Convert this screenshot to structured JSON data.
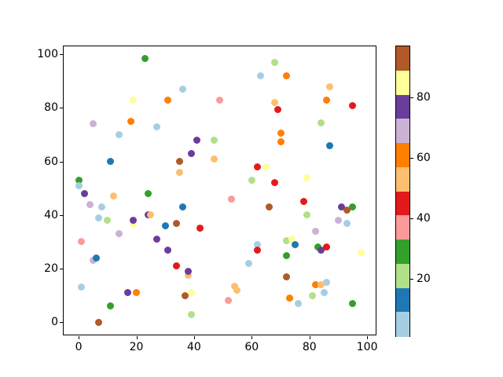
{
  "figure": {
    "background": "#ffffff",
    "border_color": "#000000"
  },
  "chart_data": {
    "type": "scatter",
    "title": "",
    "xlabel": "",
    "ylabel": "",
    "grid": false,
    "xlim": [
      -5.2,
      103.5
    ],
    "ylim": [
      -5.2,
      103.0
    ],
    "x_ticks": [
      0,
      20,
      40,
      60,
      80,
      100
    ],
    "y_ticks": [
      0,
      20,
      40,
      60,
      80,
      100
    ],
    "marker_diameter_px": 9,
    "palette": {
      "light-blue": "#a6cee3",
      "blue": "#1f78b4",
      "light-green": "#b2df8a",
      "green": "#33a02c",
      "pink": "#fb9a99",
      "red": "#e31a1c",
      "light-orange": "#fdbf6f",
      "orange": "#ff7f00",
      "light-purple": "#cab2d6",
      "purple": "#6a3d9a",
      "pale-yellow": "#ffff99",
      "brown": "#b15928"
    },
    "points": [
      [
        23,
        98.5,
        "green"
      ],
      [
        19,
        83,
        "pale-yellow"
      ],
      [
        31,
        83,
        "orange"
      ],
      [
        5,
        74,
        "light-purple"
      ],
      [
        18,
        75,
        "orange"
      ],
      [
        27,
        73,
        "light-blue"
      ],
      [
        14,
        70,
        "light-blue"
      ],
      [
        68,
        97,
        "light-green"
      ],
      [
        63,
        92,
        "light-blue"
      ],
      [
        36,
        87,
        "light-blue"
      ],
      [
        49,
        83,
        "pink"
      ],
      [
        68,
        82,
        "light-orange"
      ],
      [
        69,
        79.5,
        "red"
      ],
      [
        41,
        68,
        "purple"
      ],
      [
        47,
        68,
        "light-green"
      ],
      [
        72,
        92,
        "orange"
      ],
      [
        87,
        88,
        "light-orange"
      ],
      [
        86,
        83,
        "orange"
      ],
      [
        95,
        81,
        "red"
      ],
      [
        84,
        74.5,
        "light-green"
      ],
      [
        70,
        70.5,
        "orange"
      ],
      [
        70,
        67.5,
        "orange"
      ],
      [
        87,
        66,
        "blue"
      ],
      [
        11,
        60,
        "blue"
      ],
      [
        0,
        53,
        "green"
      ],
      [
        0,
        51,
        "light-blue"
      ],
      [
        2,
        48,
        "purple"
      ],
      [
        12,
        47,
        "light-orange"
      ],
      [
        24,
        48,
        "green"
      ],
      [
        4,
        44,
        "light-purple"
      ],
      [
        8,
        43,
        "light-blue"
      ],
      [
        7,
        39,
        "light-blue"
      ],
      [
        10,
        38,
        "light-green"
      ],
      [
        19,
        36.5,
        "pale-yellow"
      ],
      [
        19,
        38,
        "purple"
      ],
      [
        24,
        40,
        "purple"
      ],
      [
        25,
        40,
        "light-orange"
      ],
      [
        30,
        36,
        "blue"
      ],
      [
        14,
        33,
        "light-purple"
      ],
      [
        1,
        30,
        "pink"
      ],
      [
        27,
        31,
        "purple"
      ],
      [
        39,
        63,
        "purple"
      ],
      [
        35,
        60,
        "brown"
      ],
      [
        47,
        61,
        "light-orange"
      ],
      [
        35,
        56,
        "light-orange"
      ],
      [
        62,
        58,
        "red"
      ],
      [
        65,
        58,
        "pale-yellow"
      ],
      [
        60,
        53,
        "light-green"
      ],
      [
        68,
        52,
        "red"
      ],
      [
        53,
        46,
        "pink"
      ],
      [
        36,
        43,
        "blue"
      ],
      [
        66,
        43,
        "brown"
      ],
      [
        34,
        37,
        "brown"
      ],
      [
        42,
        35,
        "red"
      ],
      [
        79,
        54,
        "pale-yellow"
      ],
      [
        78,
        45,
        "red"
      ],
      [
        91,
        43,
        "purple"
      ],
      [
        95,
        43,
        "green"
      ],
      [
        93,
        42,
        "brown"
      ],
      [
        79,
        40,
        "light-green"
      ],
      [
        90,
        38,
        "light-purple"
      ],
      [
        93,
        37,
        "light-blue"
      ],
      [
        82,
        34,
        "light-purple"
      ],
      [
        31,
        27,
        "purple"
      ],
      [
        5,
        23,
        "light-purple"
      ],
      [
        6,
        24,
        "blue"
      ],
      [
        1,
        13,
        "light-blue"
      ],
      [
        17,
        11,
        "purple"
      ],
      [
        20,
        11,
        "orange"
      ],
      [
        11,
        6,
        "green"
      ],
      [
        7,
        0,
        "brown"
      ],
      [
        34,
        21,
        "red"
      ],
      [
        62,
        29,
        "light-blue"
      ],
      [
        62,
        27,
        "red"
      ],
      [
        59,
        22,
        "light-blue"
      ],
      [
        38,
        17.5,
        "light-orange"
      ],
      [
        38,
        19,
        "purple"
      ],
      [
        54,
        13.5,
        "light-orange"
      ],
      [
        55,
        12,
        "light-orange"
      ],
      [
        39,
        11,
        "pale-yellow"
      ],
      [
        37,
        10,
        "brown"
      ],
      [
        52,
        8,
        "pink"
      ],
      [
        39,
        3,
        "light-green"
      ],
      [
        72,
        30.5,
        "light-green"
      ],
      [
        74,
        31,
        "pale-yellow"
      ],
      [
        75,
        29,
        "blue"
      ],
      [
        72,
        25,
        "green"
      ],
      [
        83,
        28,
        "green"
      ],
      [
        84,
        27,
        "purple"
      ],
      [
        86,
        28,
        "red"
      ],
      [
        98,
        26,
        "pale-yellow"
      ],
      [
        72,
        17,
        "brown"
      ],
      [
        86,
        15,
        "light-blue"
      ],
      [
        82,
        14,
        "orange"
      ],
      [
        84,
        14,
        "light-orange"
      ],
      [
        81,
        10,
        "light-green"
      ],
      [
        85,
        11,
        "light-blue"
      ],
      [
        73,
        9,
        "orange"
      ],
      [
        76,
        7,
        "light-blue"
      ],
      [
        95,
        7,
        "green"
      ]
    ],
    "colorbar": {
      "vmin": 1.2,
      "vmax": 96.7,
      "ticks": [
        20,
        40,
        60,
        80
      ],
      "bands_top_to_bottom": [
        "brown",
        "pale-yellow",
        "purple",
        "light-purple",
        "orange",
        "light-orange",
        "red",
        "pink",
        "green",
        "light-green",
        "blue",
        "light-blue"
      ],
      "legend_position": "right"
    }
  }
}
